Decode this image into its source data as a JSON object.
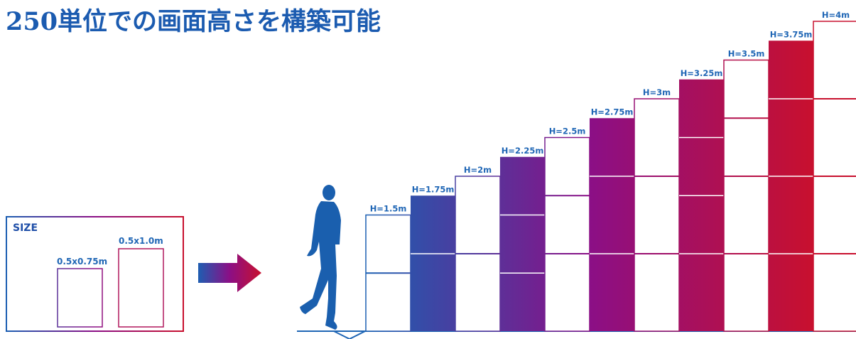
{
  "title": "250単位での画面高さを構築可能",
  "size_box": {
    "label": "SIZE",
    "panel_small": "0.5x0.75m",
    "panel_large": "0.5x1.0m"
  },
  "columns": [
    {
      "label": "H=1.5m",
      "height_m": 1.5,
      "style": "outline",
      "joints": [
        0.75
      ]
    },
    {
      "label": "H=1.75m",
      "height_m": 1.75,
      "style": "filled",
      "joints": [
        1.0
      ]
    },
    {
      "label": "H=2m",
      "height_m": 2.0,
      "style": "outline",
      "joints": [
        1.0
      ]
    },
    {
      "label": "H=2.25m",
      "height_m": 2.25,
      "style": "filled",
      "joints": [
        0.75,
        1.5
      ]
    },
    {
      "label": "H=2.5m",
      "height_m": 2.5,
      "style": "outline",
      "joints": [
        1.0,
        1.75
      ]
    },
    {
      "label": "H=2.75m",
      "height_m": 2.75,
      "style": "filled",
      "joints": [
        1.0,
        2.0
      ]
    },
    {
      "label": "H=3m",
      "height_m": 3.0,
      "style": "outline",
      "joints": [
        1.0,
        2.0
      ]
    },
    {
      "label": "H=3.25m",
      "height_m": 3.25,
      "style": "filled",
      "joints": [
        1.0,
        1.75,
        2.5
      ]
    },
    {
      "label": "H=3.5m",
      "height_m": 3.5,
      "style": "outline",
      "joints": [
        1.0,
        2.0,
        2.75
      ]
    },
    {
      "label": "H=3.75m",
      "height_m": 3.75,
      "style": "filled",
      "joints": [
        1.0,
        2.0,
        3.0
      ]
    },
    {
      "label": "H=4m",
      "height_m": 4.0,
      "style": "outline",
      "joints": [
        1.0,
        2.0,
        3.0
      ]
    }
  ],
  "colors": {
    "title": "#1b5bb0",
    "label": "#1f66b5",
    "gradient_start": "#1b5fb2",
    "gradient_mid": "#8b0f86",
    "gradient_end": "#c8102e",
    "person": "#1a5fae"
  },
  "icons": {
    "arrow": "right-arrow-icon",
    "person": "walking-person-icon"
  }
}
